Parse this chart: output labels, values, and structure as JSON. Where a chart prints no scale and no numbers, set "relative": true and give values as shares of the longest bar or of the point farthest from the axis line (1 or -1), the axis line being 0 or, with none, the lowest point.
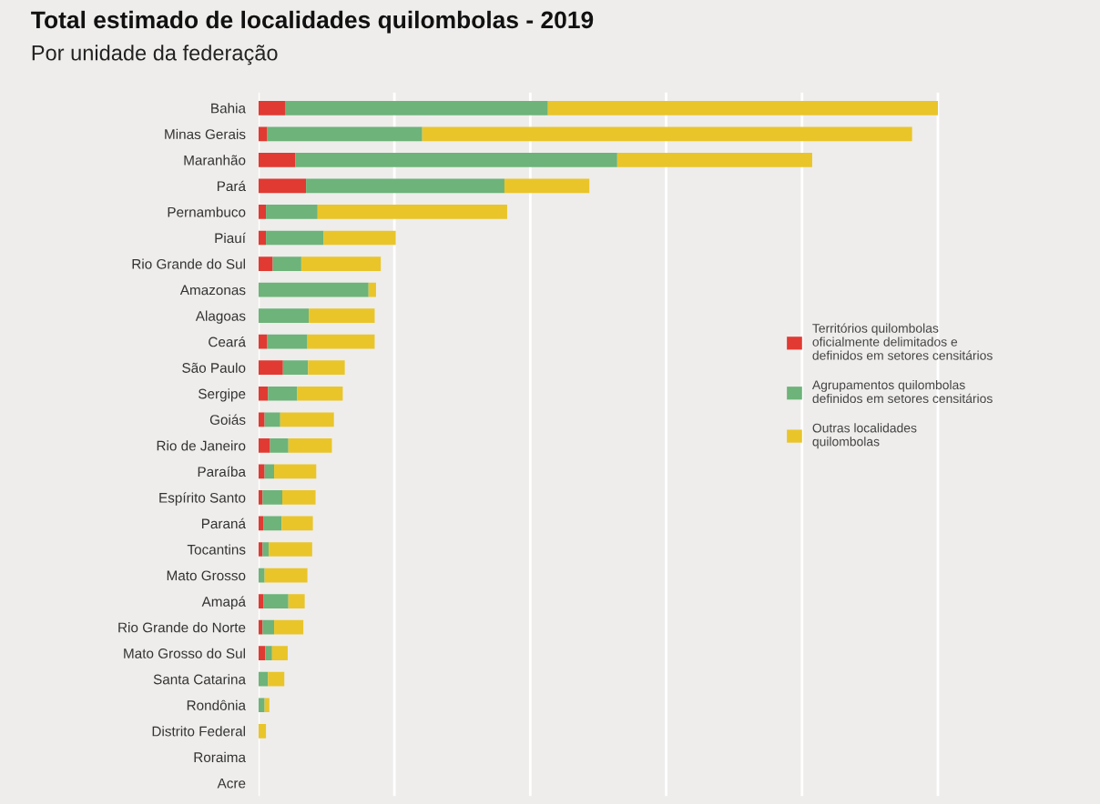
{
  "chart_data": {
    "type": "bar",
    "orientation": "horizontal",
    "stacked": true,
    "relative": true,
    "title": "Total estimado de localidades quilombolas - 2019",
    "subtitle": "Por unidade da federação",
    "categories": [
      "Bahia",
      "Minas Gerais",
      "Maranhão",
      "Pará",
      "Pernambuco",
      "Piauí",
      "Rio Grande do Sul",
      "Amazonas",
      "Alagoas",
      "Ceará",
      "São Paulo",
      "Sergipe",
      "Goiás",
      "Rio de Janeiro",
      "Paraíba",
      "Espírito Santo",
      "Paraná",
      "Tocantins",
      "Mato Grosso",
      "Amapá",
      "Rio Grande do Norte",
      "Mato Grosso do Sul",
      "Santa Catarina",
      "Rondônia",
      "Distrito Federal",
      "Roraima",
      "Acre"
    ],
    "series": [
      {
        "name": "Territórios quilombolas\noficialmente delimitados e\ndefinidos em setores censitários",
        "color": "#e03a32",
        "values": [
          0.039,
          0.013,
          0.054,
          0.07,
          0.011,
          0.011,
          0.021,
          0,
          0,
          0.013,
          0.036,
          0.014,
          0.009,
          0.017,
          0.009,
          0.006,
          0.007,
          0.006,
          0,
          0.007,
          0.006,
          0.01,
          0,
          0,
          0,
          0,
          0
        ]
      },
      {
        "name": "Agrupamentos quilombolas\ndefinidos em setores censitários",
        "color": "#6db37a",
        "values": [
          0.387,
          0.228,
          0.474,
          0.292,
          0.076,
          0.085,
          0.042,
          0.162,
          0.074,
          0.059,
          0.037,
          0.043,
          0.023,
          0.027,
          0.014,
          0.029,
          0.027,
          0.009,
          0.009,
          0.037,
          0.017,
          0.01,
          0.014,
          0.009,
          0,
          0,
          0
        ]
      },
      {
        "name": "Outras localidades\nquilombolas",
        "color": "#e9c52a",
        "values": [
          0.574,
          0.721,
          0.287,
          0.125,
          0.279,
          0.106,
          0.117,
          0.011,
          0.097,
          0.099,
          0.054,
          0.067,
          0.079,
          0.064,
          0.062,
          0.049,
          0.046,
          0.064,
          0.063,
          0.024,
          0.043,
          0.023,
          0.024,
          0.007,
          0.011,
          0,
          0
        ]
      }
    ],
    "grid": "x",
    "legend": "right"
  }
}
